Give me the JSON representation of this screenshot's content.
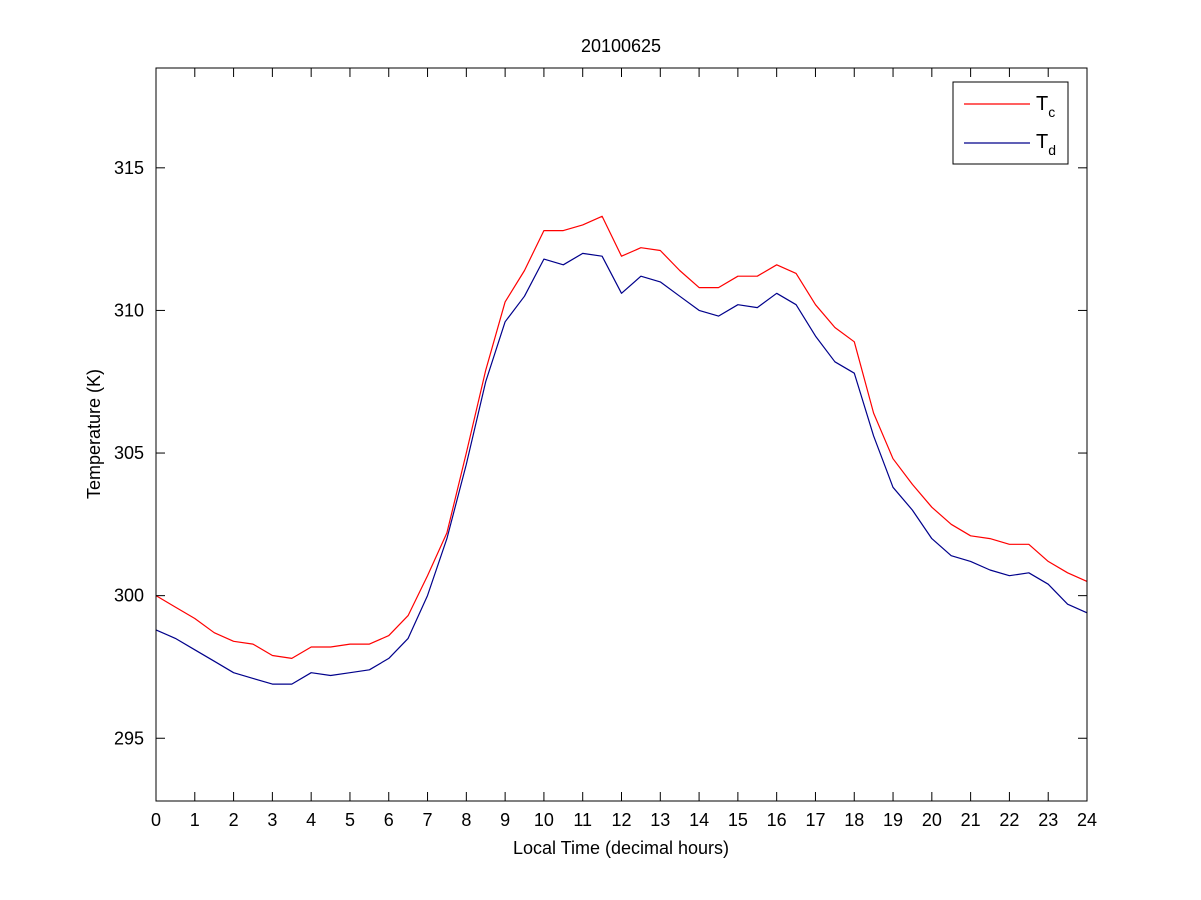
{
  "chart_data": {
    "type": "line",
    "title": "20100625",
    "xlabel": "Local Time (decimal hours)",
    "ylabel": "Temperature (K)",
    "xlim": [
      0,
      24
    ],
    "ylim": [
      292.8,
      318.5
    ],
    "xticks": [
      0,
      1,
      2,
      3,
      4,
      5,
      6,
      7,
      8,
      9,
      10,
      11,
      12,
      13,
      14,
      15,
      16,
      17,
      18,
      19,
      20,
      21,
      22,
      23,
      24
    ],
    "xtick_labels": [
      "0",
      "1",
      "2",
      "3",
      "4",
      "5",
      "6",
      "7",
      "8",
      "9",
      "10",
      "11",
      "12",
      "13",
      "14",
      "15",
      "16",
      "17",
      "18",
      "19",
      "20",
      "21",
      "22",
      "23",
      "24"
    ],
    "yticks": [
      295,
      300,
      305,
      310,
      315
    ],
    "ytick_labels": [
      "295",
      "300",
      "305",
      "310",
      "315"
    ],
    "grid": false,
    "legend_position": "top-right",
    "series": [
      {
        "name": "T",
        "subscript": "c",
        "color": "#ff0000",
        "x": [
          0,
          0.5,
          1,
          1.5,
          2,
          2.5,
          3,
          3.5,
          4,
          4.5,
          5,
          5.5,
          6,
          6.5,
          7,
          7.5,
          8,
          8.5,
          9,
          9.5,
          10,
          10.5,
          11,
          11.5,
          12,
          12.5,
          13,
          13.5,
          14,
          14.5,
          15,
          15.5,
          16,
          16.5,
          17,
          17.5,
          18,
          18.5,
          19,
          19.5,
          20,
          20.5,
          21,
          21.5,
          22,
          22.5,
          23,
          23.5,
          24
        ],
        "y": [
          300.0,
          299.6,
          299.2,
          298.7,
          298.4,
          298.3,
          297.9,
          297.8,
          298.2,
          298.2,
          298.3,
          298.3,
          298.6,
          299.3,
          300.7,
          302.2,
          305.0,
          307.9,
          310.3,
          311.4,
          312.8,
          312.8,
          313.0,
          313.3,
          311.9,
          312.2,
          312.1,
          311.4,
          310.8,
          310.8,
          311.2,
          311.2,
          311.6,
          311.3,
          310.2,
          309.4,
          308.9,
          306.4,
          304.8,
          303.9,
          303.1,
          302.5,
          302.1,
          302.0,
          301.8,
          301.8,
          301.2,
          300.8,
          300.5
        ]
      },
      {
        "name": "T",
        "subscript": "d",
        "color": "#00008b",
        "x": [
          0,
          0.5,
          1,
          1.5,
          2,
          2.5,
          3,
          3.5,
          4,
          4.5,
          5,
          5.5,
          6,
          6.5,
          7,
          7.5,
          8,
          8.5,
          9,
          9.5,
          10,
          10.5,
          11,
          11.5,
          12,
          12.5,
          13,
          13.5,
          14,
          14.5,
          15,
          15.5,
          16,
          16.5,
          17,
          17.5,
          18,
          18.5,
          19,
          19.5,
          20,
          20.5,
          21,
          21.5,
          22,
          22.5,
          23,
          23.5,
          24
        ],
        "y": [
          298.8,
          298.5,
          298.1,
          297.7,
          297.3,
          297.1,
          296.9,
          296.9,
          297.3,
          297.2,
          297.3,
          297.4,
          297.8,
          298.5,
          300.0,
          302.0,
          304.6,
          307.5,
          309.6,
          310.5,
          311.8,
          311.6,
          312.0,
          311.9,
          310.6,
          311.2,
          311.0,
          310.5,
          310.0,
          309.8,
          310.2,
          310.1,
          310.6,
          310.2,
          309.1,
          308.2,
          307.8,
          305.6,
          303.8,
          303.0,
          302.0,
          301.4,
          301.2,
          300.9,
          300.7,
          300.8,
          300.4,
          299.7,
          299.4
        ]
      }
    ]
  }
}
